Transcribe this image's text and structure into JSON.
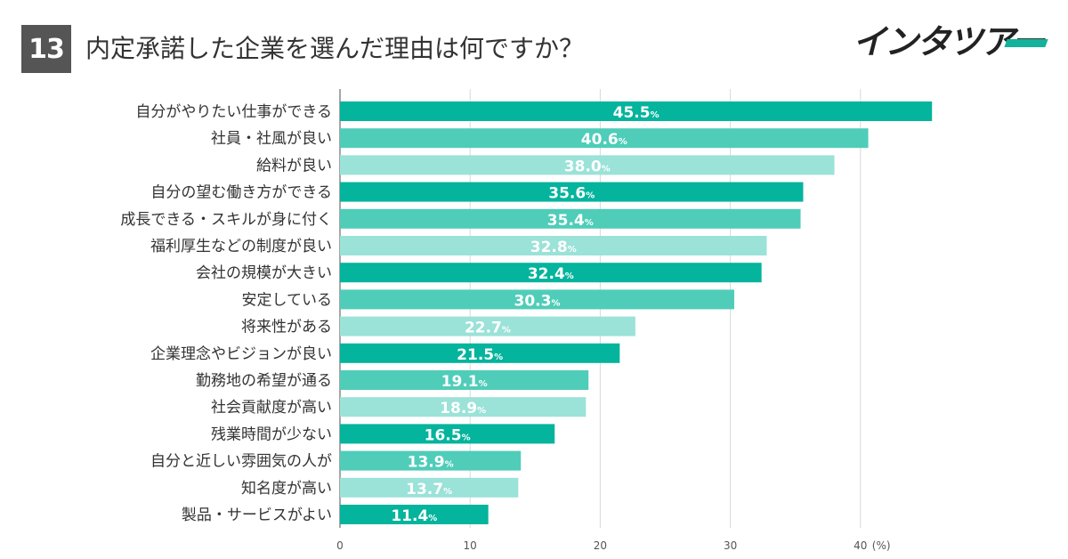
{
  "header": {
    "number": "13",
    "title": "内定承諾した企業を選んだ理由は何ですか？",
    "logo": "インタツアー"
  },
  "chart_data": {
    "type": "bar",
    "orientation": "horizontal",
    "title": "内定承諾した企業を選んだ理由は何ですか？",
    "categories": [
      "自分がやりたい仕事ができる",
      "社員・社風が良い",
      "給料が良い",
      "自分の望む働き方ができる",
      "成長できる・スキルが身に付く",
      "福利厚生などの制度が良い",
      "会社の規模が大きい",
      "安定している",
      "将来性がある",
      "企業理念やビジョンが良い",
      "勤務地の希望が通る",
      "社会貢献度が高い",
      "残業時間が少ない",
      "自分と近しい雰囲気の人が",
      "知名度が高い",
      "製品・サービスがよい"
    ],
    "values": [
      45.5,
      40.6,
      38.0,
      35.6,
      35.4,
      32.8,
      32.4,
      30.3,
      22.7,
      21.5,
      19.1,
      18.9,
      16.5,
      13.9,
      13.7,
      11.4
    ],
    "value_labels": [
      "45.5",
      "40.6",
      "38.0",
      "35.6",
      "35.4",
      "32.8",
      "32.4",
      "30.3",
      "22.7",
      "21.5",
      "19.1",
      "18.9",
      "16.5",
      "13.9",
      "13.7",
      "11.4"
    ],
    "value_suffix": "%",
    "xlim": [
      0,
      48
    ],
    "ticks": [
      0,
      10,
      20,
      30,
      40
    ],
    "tick_labels": [
      "0",
      "10",
      "20",
      "30",
      "40"
    ],
    "unit_label": "(%)",
    "grid": true,
    "colors": [
      "#04b49c",
      "#4fcdb9",
      "#9be2d8"
    ]
  }
}
